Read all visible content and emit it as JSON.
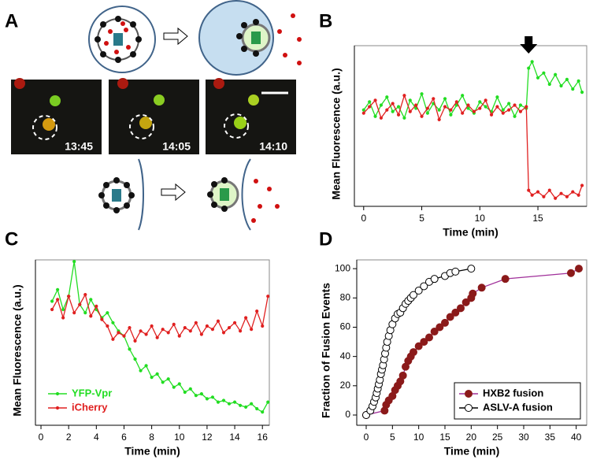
{
  "panel_a": {
    "panel": "A",
    "timestamps": [
      "13:45",
      "14:05",
      "14:10"
    ]
  },
  "chart_data": [
    {
      "type": "line",
      "panel": "B",
      "ylabel": "Mean Fluorescence (a.u.)",
      "xlabel": "Time (min)",
      "xlim": [
        -0.8,
        19.2
      ],
      "ylim": [
        0,
        10
      ],
      "xticks": [
        0,
        5,
        10,
        15
      ],
      "marker_size": 1.6,
      "x": [
        0,
        0.5,
        1,
        1.5,
        2,
        2.5,
        3,
        3.5,
        4,
        4.5,
        5,
        5.5,
        6,
        6.5,
        7,
        7.5,
        8,
        8.5,
        9,
        9.5,
        10,
        10.5,
        11,
        11.5,
        12,
        12.5,
        13,
        13.5,
        14,
        14.2,
        14.5,
        15,
        15.5,
        16,
        16.5,
        17,
        17.5,
        18,
        18.5,
        18.8
      ],
      "series": [
        {
          "name": "YFP-Vpr",
          "color": "#22dd22",
          "values": [
            6.0,
            6.5,
            5.6,
            6.3,
            6.8,
            5.9,
            6.2,
            5.5,
            6.6,
            6.1,
            7.0,
            5.8,
            6.4,
            6.0,
            6.7,
            5.7,
            6.3,
            6.9,
            6.1,
            5.8,
            6.5,
            6.2,
            5.9,
            6.8,
            6.0,
            6.4,
            5.6,
            6.3,
            6.1,
            8.6,
            9.0,
            8.0,
            8.3,
            7.6,
            8.2,
            7.5,
            7.9,
            7.3,
            7.8,
            7.1
          ]
        },
        {
          "name": "iCherry",
          "color": "#e02020",
          "values": [
            5.8,
            6.2,
            6.6,
            5.5,
            6.0,
            6.4,
            5.7,
            6.9,
            5.9,
            6.3,
            5.6,
            6.1,
            6.7,
            5.4,
            6.2,
            6.0,
            6.5,
            5.8,
            6.3,
            5.9,
            6.1,
            6.6,
            5.7,
            6.2,
            5.8,
            6.0,
            6.3,
            5.9,
            6.2,
            1.0,
            0.7,
            0.9,
            0.6,
            1.0,
            0.5,
            0.8,
            0.6,
            0.9,
            0.7,
            1.3
          ]
        }
      ]
    },
    {
      "type": "line",
      "panel": "C",
      "ylabel": "Mean Fluorescence (a.u.)",
      "xlabel": "Time (min)",
      "xlim": [
        -0.4,
        16.5
      ],
      "ylim": [
        0,
        10
      ],
      "xticks": [
        0,
        2,
        4,
        6,
        8,
        10,
        12,
        14,
        16
      ],
      "marker_size": 1.6,
      "legend": "lower left",
      "x": [
        0.8,
        1.2,
        1.6,
        2.0,
        2.4,
        2.8,
        3.2,
        3.6,
        4.0,
        4.4,
        4.8,
        5.2,
        5.6,
        6.0,
        6.4,
        6.8,
        7.2,
        7.6,
        8.0,
        8.4,
        8.8,
        9.2,
        9.6,
        10.0,
        10.4,
        10.8,
        11.2,
        11.6,
        12.0,
        12.4,
        12.8,
        13.2,
        13.6,
        14.0,
        14.4,
        14.8,
        15.2,
        15.6,
        16.0,
        16.4
      ],
      "series": [
        {
          "name": "YFP-Vpr",
          "color": "#22dd22",
          "values": [
            7.5,
            8.2,
            7.0,
            7.8,
            9.9,
            7.3,
            6.8,
            7.6,
            7.0,
            6.5,
            6.8,
            6.2,
            5.7,
            5.4,
            4.6,
            4.0,
            3.3,
            3.6,
            2.9,
            3.1,
            2.6,
            2.8,
            2.3,
            2.5,
            2.0,
            2.2,
            1.8,
            1.9,
            1.6,
            1.7,
            1.4,
            1.5,
            1.3,
            1.4,
            1.2,
            1.1,
            1.3,
            1.0,
            0.8,
            1.4
          ]
        },
        {
          "name": "iCherry",
          "color": "#e02020",
          "values": [
            7.0,
            7.6,
            6.5,
            7.8,
            6.8,
            7.3,
            7.9,
            6.6,
            7.2,
            6.4,
            6.0,
            5.2,
            5.6,
            5.4,
            5.9,
            5.1,
            5.7,
            5.5,
            6.0,
            5.3,
            5.8,
            5.6,
            6.1,
            5.4,
            5.9,
            5.7,
            6.2,
            5.5,
            6.0,
            5.8,
            6.3,
            5.6,
            5.9,
            6.2,
            5.7,
            6.5,
            5.8,
            6.9,
            6.0,
            7.8
          ]
        }
      ]
    },
    {
      "type": "line",
      "panel": "D",
      "ylabel": "Fraction of Fusion Events",
      "xlabel": "Time (min)",
      "xlim": [
        -1.8,
        42
      ],
      "ylim": [
        -7,
        106
      ],
      "xticks": [
        0,
        5,
        10,
        15,
        20,
        25,
        30,
        35,
        40
      ],
      "yticks": [
        0,
        20,
        40,
        60,
        80,
        100
      ],
      "marker_size": 4.5,
      "legend": "lower right",
      "legend_box": true,
      "series": [
        {
          "name": "HXB2 fusion",
          "color": "#8b1a1a",
          "fill": "#8b1a1a",
          "line_color": "#a0309a",
          "x": [
            0,
            3.5,
            3.8,
            4.3,
            5,
            5.5,
            6,
            6.5,
            7,
            7.5,
            8,
            8.5,
            9,
            10,
            11,
            12,
            13,
            14,
            15,
            16,
            17,
            18,
            19,
            20,
            20.3,
            22,
            26.5,
            39,
            40.5
          ],
          "values": [
            0,
            3,
            7,
            10,
            13,
            17,
            20,
            23,
            27,
            33,
            37,
            40,
            43,
            47,
            50,
            53,
            57,
            60,
            63,
            67,
            70,
            73,
            77,
            80,
            83,
            87,
            93,
            97,
            100
          ]
        },
        {
          "name": "ASLV-A fusion",
          "color": "#000000",
          "fill": "#ffffff",
          "line_color": "#000000",
          "x": [
            0,
            0.8,
            1.2,
            1.5,
            1.8,
            2.0,
            2.2,
            2.4,
            2.6,
            2.8,
            3.0,
            3.2,
            3.4,
            3.6,
            3.8,
            4.0,
            4.3,
            4.6,
            5,
            5.5,
            6,
            6.5,
            7,
            7.5,
            8,
            8.5,
            9,
            10,
            11,
            12,
            13,
            15,
            16,
            17,
            20
          ],
          "values": [
            0,
            3,
            6,
            9,
            12,
            15,
            18,
            21,
            24,
            28,
            31,
            34,
            38,
            42,
            46,
            50,
            54,
            58,
            62,
            66,
            69,
            70,
            73,
            76,
            78,
            80,
            82,
            85,
            88,
            91,
            93,
            95,
            97,
            98,
            100
          ]
        }
      ]
    }
  ]
}
